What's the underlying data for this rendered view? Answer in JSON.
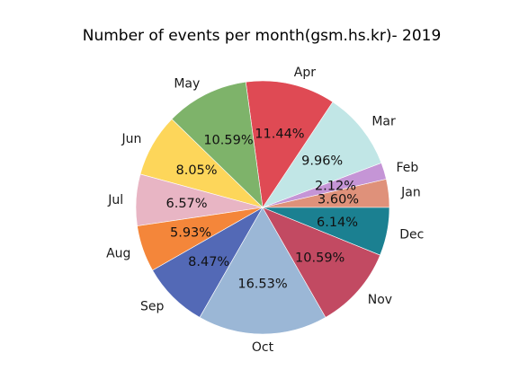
{
  "chart_data": {
    "type": "pie",
    "title": "Number of events per month(gsm.hs.kr)- 2019",
    "categories": [
      "Jan",
      "Feb",
      "Mar",
      "Apr",
      "May",
      "Jun",
      "Jul",
      "Aug",
      "Sep",
      "Oct",
      "Nov",
      "Dec"
    ],
    "values": [
      3.6,
      2.12,
      9.96,
      11.44,
      10.59,
      8.05,
      6.57,
      5.93,
      8.47,
      16.53,
      10.59,
      6.14
    ],
    "value_labels": [
      "3.60%",
      "2.12%",
      "9.96%",
      "11.44%",
      "10.59%",
      "8.05%",
      "6.57%",
      "5.93%",
      "8.47%",
      "16.53%",
      "10.59%",
      "6.14%"
    ],
    "colors": [
      "#df917a",
      "#c595d6",
      "#c1e6e6",
      "#df4a54",
      "#7eb36a",
      "#fdd65a",
      "#e8b5c4",
      "#f4863a",
      "#5369b6",
      "#9bb7d6",
      "#c24a62",
      "#1b8091"
    ],
    "start_angle_deg": 0,
    "direction": "counterclockwise"
  }
}
